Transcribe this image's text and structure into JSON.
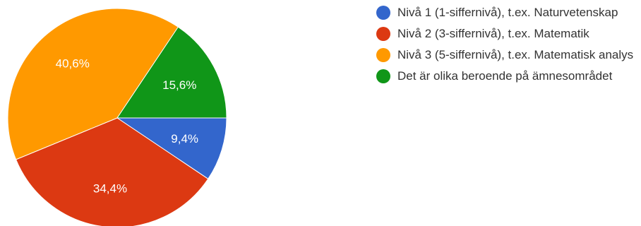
{
  "chart_data": {
    "type": "pie",
    "title": "",
    "slices": [
      {
        "label": "Nivå 1 (1-siffernivå), t.ex. Naturvetenskap",
        "value": 9.4,
        "display": "9,4%",
        "color": "#3366cc"
      },
      {
        "label": "Nivå 2 (3-siffernivå), t.ex. Matematik",
        "value": 34.4,
        "display": "34,4%",
        "color": "#dc3912"
      },
      {
        "label": "Nivå 3 (5-siffernivå), t.ex. Matematisk analys",
        "value": 40.6,
        "display": "40,6%",
        "color": "#ff9900"
      },
      {
        "label": "Det är olika beroende på ämnesområdet",
        "value": 15.6,
        "display": "15,6%",
        "color": "#109618"
      }
    ],
    "legend_position": "right"
  }
}
